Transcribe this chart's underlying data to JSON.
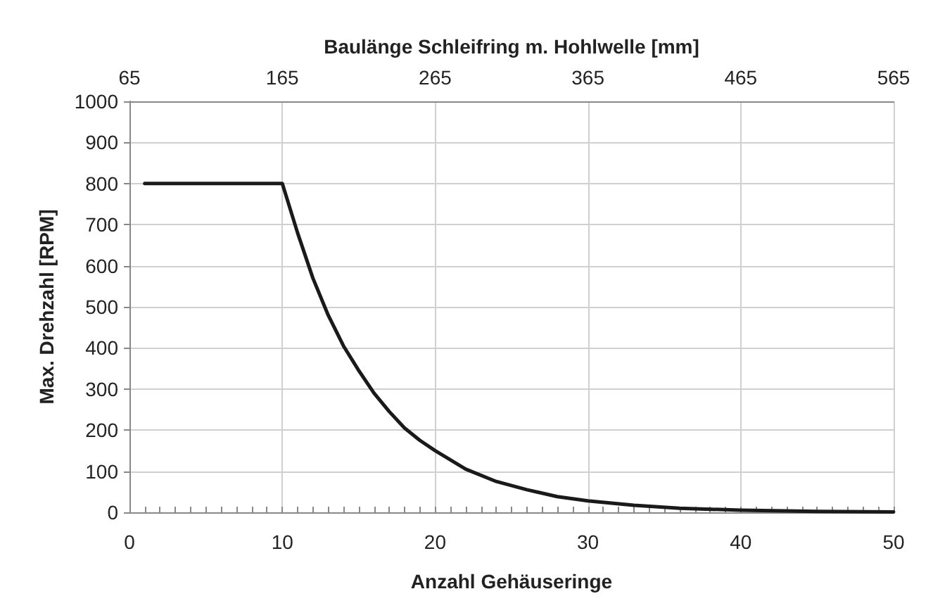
{
  "chart_data": {
    "type": "line",
    "xlabel": "Anzahl Gehäuseringe",
    "ylabel": "Max. Drehzahl [RPM]",
    "x2label": "Baulänge Schleifring m. Hohlwelle [mm]",
    "x": [
      1,
      10,
      11,
      12,
      13,
      14,
      15,
      16,
      17,
      18,
      19,
      20,
      22,
      24,
      26,
      28,
      30,
      33,
      36,
      40,
      45,
      50
    ],
    "series": [
      {
        "color": "#1a1a1a",
        "values": [
          800,
          800,
          680,
          570,
          480,
          405,
          345,
          290,
          245,
          205,
          175,
          150,
          105,
          75,
          55,
          38,
          28,
          17,
          10,
          5,
          2,
          1
        ]
      }
    ],
    "xlim": [
      0,
      50
    ],
    "xticks": [
      0,
      {
        "value": 1,
        "label": null
      },
      {
        "value": 2,
        "label": null
      },
      {
        "value": 3,
        "label": null
      },
      {
        "value": 4,
        "label": null
      },
      {
        "value": 5,
        "label": null
      },
      {
        "value": 6,
        "label": null
      },
      {
        "value": 7,
        "label": null
      },
      {
        "value": 8,
        "label": null
      },
      {
        "value": 9,
        "label": null
      },
      10,
      {
        "value": 11,
        "label": null
      },
      {
        "value": 12,
        "label": null
      },
      {
        "value": 13,
        "label": null
      },
      {
        "value": 14,
        "label": null
      },
      {
        "value": 15,
        "label": null
      },
      {
        "value": 16,
        "label": null
      },
      {
        "value": 17,
        "label": null
      },
      {
        "value": 18,
        "label": null
      },
      {
        "value": 19,
        "label": null
      },
      20,
      {
        "value": 21,
        "label": null
      },
      {
        "value": 22,
        "label": null
      },
      {
        "value": 23,
        "label": null
      },
      {
        "value": 24,
        "label": null
      },
      {
        "value": 25,
        "label": null
      },
      {
        "value": 26,
        "label": null
      },
      {
        "value": 27,
        "label": null
      },
      {
        "value": 28,
        "label": null
      },
      {
        "value": 29,
        "label": null
      },
      30,
      {
        "value": 31,
        "label": null
      },
      {
        "value": 32,
        "label": null
      },
      {
        "value": 33,
        "label": null
      },
      {
        "value": 34,
        "label": null
      },
      {
        "value": 35,
        "label": null
      },
      {
        "value": 36,
        "label": null
      },
      {
        "value": 37,
        "label": null
      },
      {
        "value": 38,
        "label": null
      },
      {
        "value": 39,
        "label": null
      },
      40,
      {
        "value": 41,
        "label": null
      },
      {
        "value": 42,
        "label": null
      },
      {
        "value": 43,
        "label": null
      },
      {
        "value": 44,
        "label": null
      },
      {
        "value": 45,
        "label": null
      },
      {
        "value": 46,
        "label": null
      },
      {
        "value": 47,
        "label": null
      },
      {
        "value": 48,
        "label": null
      },
      {
        "value": 49,
        "label": null
      },
      50
    ],
    "x2lim": [
      65,
      565
    ],
    "x2ticks": [
      65,
      165,
      265,
      365,
      465,
      565
    ],
    "ylim": [
      0,
      1000
    ],
    "yticks": [
      0,
      100,
      200,
      300,
      400,
      500,
      600,
      700,
      800,
      900,
      1000
    ],
    "grid": true,
    "marker": "none",
    "line_style": "solid"
  }
}
